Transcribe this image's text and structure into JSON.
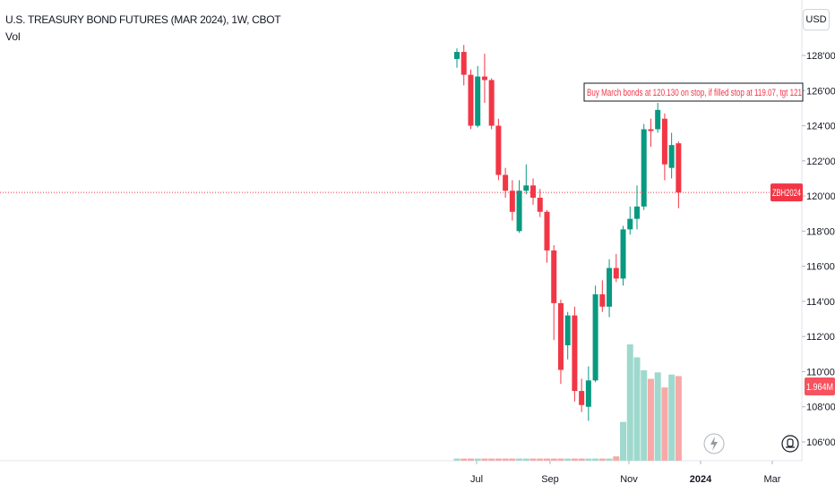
{
  "header": {
    "title": "U.S. TREASURY BOND FUTURES (MAR 2024), 1W, CBOT",
    "indicator": "Vol"
  },
  "currency": "USD",
  "icons": [
    "lightning-icon",
    "bell-alert-icon"
  ],
  "colors": {
    "up": "#089981",
    "down": "#f23645",
    "vol_up": "#9fd9ce",
    "vol_down": "#f7a9a7",
    "price_line": "#f23645"
  },
  "chart_data": {
    "type": "candlestick",
    "title": "U.S. TREASURY BOND FUTURES (MAR 2024), 1W, CBOT",
    "symbol": "ZBH2024",
    "timeframe": "1W",
    "y_tick_labels": [
      "128'00",
      "126'00",
      "124'00",
      "122'00",
      "120'00",
      "118'00",
      "116'00",
      "114'00",
      "112'00",
      "110'00",
      "108'00",
      "106'00"
    ],
    "y_ticks": [
      128,
      126,
      124,
      122,
      120,
      118,
      116,
      114,
      112,
      110,
      108,
      106
    ],
    "ylim": [
      104.5,
      130.5
    ],
    "x_tick_labels": [
      "Jul",
      "Sep",
      "Nov",
      "2024",
      "Mar"
    ],
    "last_price_label": "ZBH2024",
    "last_price": 120.2,
    "volume_label": "1.964M",
    "annotation": "Buy March bonds at 120.130 on stop, if filled stop at 119.07, tgt 121",
    "candles": [
      {
        "o": 127.8,
        "h": 128.4,
        "l": 127.3,
        "c": 128.2
      },
      {
        "o": 128.2,
        "h": 128.6,
        "l": 126.3,
        "c": 126.9
      },
      {
        "o": 126.9,
        "h": 127.2,
        "l": 123.8,
        "c": 124.0
      },
      {
        "o": 124.0,
        "h": 127.4,
        "l": 123.9,
        "c": 126.8
      },
      {
        "o": 126.8,
        "h": 128.1,
        "l": 125.3,
        "c": 126.6
      },
      {
        "o": 126.6,
        "h": 126.7,
        "l": 123.8,
        "c": 124.0
      },
      {
        "o": 124.0,
        "h": 124.4,
        "l": 120.9,
        "c": 121.2
      },
      {
        "o": 121.2,
        "h": 121.6,
        "l": 119.9,
        "c": 120.3
      },
      {
        "o": 120.3,
        "h": 120.9,
        "l": 118.6,
        "c": 119.1
      },
      {
        "o": 118.0,
        "h": 120.9,
        "l": 117.9,
        "c": 120.3
      },
      {
        "o": 120.3,
        "h": 121.8,
        "l": 120.1,
        "c": 120.6
      },
      {
        "o": 120.6,
        "h": 121.0,
        "l": 119.5,
        "c": 119.9
      },
      {
        "o": 119.9,
        "h": 120.4,
        "l": 118.8,
        "c": 119.1
      },
      {
        "o": 119.1,
        "h": 119.2,
        "l": 116.2,
        "c": 116.9
      },
      {
        "o": 116.9,
        "h": 117.2,
        "l": 111.8,
        "c": 113.9
      },
      {
        "o": 113.9,
        "h": 114.1,
        "l": 109.3,
        "c": 110.1
      },
      {
        "o": 111.5,
        "h": 113.4,
        "l": 110.7,
        "c": 113.2
      },
      {
        "o": 113.2,
        "h": 113.7,
        "l": 108.3,
        "c": 108.9
      },
      {
        "o": 108.9,
        "h": 109.6,
        "l": 107.7,
        "c": 108.1
      },
      {
        "o": 108.0,
        "h": 110.3,
        "l": 107.2,
        "c": 109.5
      },
      {
        "o": 109.5,
        "h": 114.9,
        "l": 109.4,
        "c": 114.4
      },
      {
        "o": 114.4,
        "h": 115.2,
        "l": 113.4,
        "c": 113.7
      },
      {
        "o": 113.7,
        "h": 116.4,
        "l": 113.1,
        "c": 115.9
      },
      {
        "o": 115.9,
        "h": 116.7,
        "l": 115.1,
        "c": 115.3
      },
      {
        "o": 115.3,
        "h": 118.3,
        "l": 114.9,
        "c": 118.1
      },
      {
        "o": 118.1,
        "h": 119.4,
        "l": 117.8,
        "c": 118.7
      },
      {
        "o": 118.7,
        "h": 120.6,
        "l": 118.1,
        "c": 119.4
      },
      {
        "o": 119.4,
        "h": 124.1,
        "l": 119.2,
        "c": 123.8
      },
      {
        "o": 123.8,
        "h": 124.4,
        "l": 122.8,
        "c": 123.7
      },
      {
        "o": 123.8,
        "h": 125.3,
        "l": 123.6,
        "c": 124.9
      },
      {
        "o": 124.4,
        "h": 124.7,
        "l": 120.9,
        "c": 121.8
      },
      {
        "o": 121.6,
        "h": 123.6,
        "l": 121.0,
        "c": 122.9
      },
      {
        "o": 123.0,
        "h": 123.1,
        "l": 119.3,
        "c": 120.2
      }
    ],
    "volume": [
      0.05,
      0.05,
      0.05,
      0.05,
      0.05,
      0.05,
      0.05,
      0.05,
      0.05,
      0.05,
      0.05,
      0.05,
      0.05,
      0.05,
      0.05,
      0.05,
      0.05,
      0.05,
      0.05,
      0.05,
      0.05,
      0.05,
      0.05,
      0.1,
      0.9,
      2.7,
      2.4,
      2.1,
      1.9,
      2.05,
      1.7,
      2.0,
      1.964
    ]
  }
}
